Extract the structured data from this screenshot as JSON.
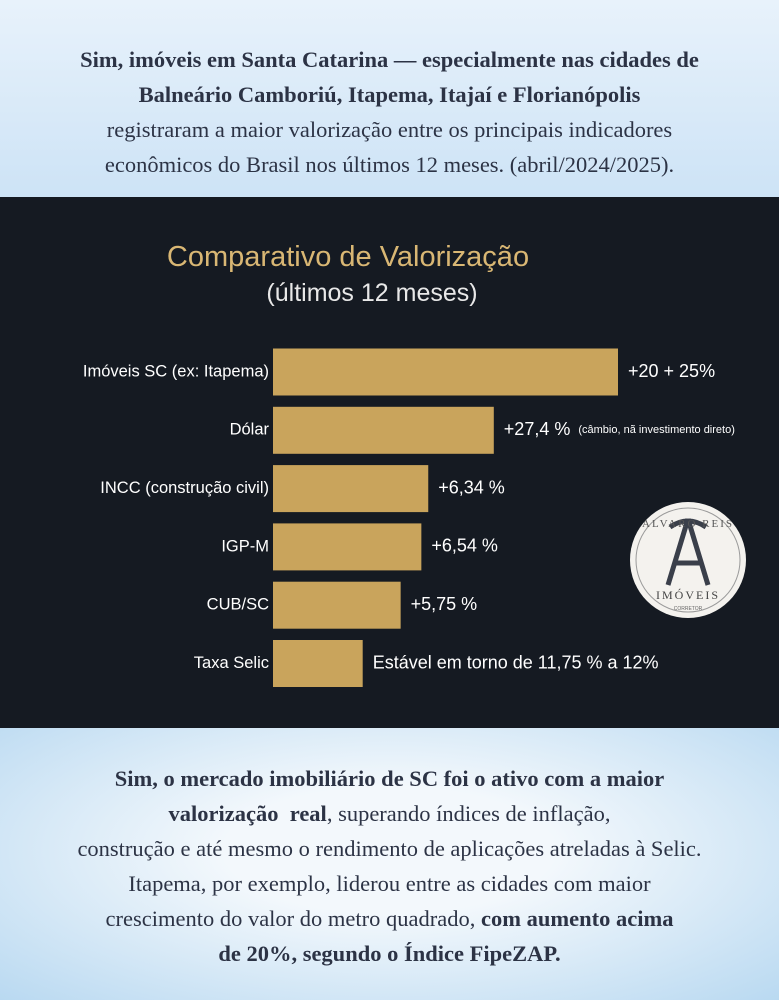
{
  "header": {
    "lines": [
      [
        {
          "text": "Sim, imóveis em Santa Catarina — especialmente nas cidades de",
          "bold": true
        }
      ],
      [
        {
          "text": "Balneário Camboriú, Itapema, Itajaí e Florianópolis",
          "bold": true
        }
      ],
      [
        {
          "text": "registraram a maior valorização entre os principais indicadores",
          "bold": false
        }
      ],
      [
        {
          "text": "econômicos do Brasil nos últimos 12 meses. (abril/2024/2025).",
          "bold": false
        }
      ]
    ]
  },
  "chart_data": {
    "type": "hbar",
    "title": "Comparativo de Valorização",
    "subtitle": "(últimos 12 meses)",
    "categories": [
      "Imóveis SC (ex: Itapema)",
      "Dólar",
      "INCC (construção civil)",
      "IGP-M",
      "CUB/SC",
      "Taxa Selic"
    ],
    "values": [
      100,
      64,
      45,
      43,
      37,
      26
    ],
    "xlim": [
      0,
      100
    ],
    "color": "#c9a45c",
    "annotations": [
      "+20 + 25%",
      "+27,4 %",
      "+6,34 %",
      "+6,54 %",
      "+5,75 %",
      "Estável em torno de 11,75 % a 12%"
    ],
    "notes": [
      null,
      "(câmbio, nã investimento direto)",
      null,
      null,
      null,
      null
    ]
  },
  "logo": {
    "name": "ALVARO REIS",
    "brand": "IMÓVEIS",
    "role": "CORRETOR"
  },
  "footer": {
    "lines": [
      [
        {
          "text": "Sim, o mercado imobiliário de SC foi o ativo com a maior",
          "bold": true
        }
      ],
      [
        {
          "text": "valorização  real",
          "bold": true
        },
        {
          "text": ", superando índices de inflação,",
          "bold": false
        }
      ],
      [
        {
          "text": "construção e até mesmo o rendimento de aplicações atreladas à Selic.",
          "bold": false
        }
      ],
      [
        {
          "text": "Itapema, por exemplo, liderou entre as cidades com maior",
          "bold": false
        }
      ],
      [
        {
          "text": "crescimento do valor do metro quadrado, ",
          "bold": false
        },
        {
          "text": "com aumento acima",
          "bold": true
        }
      ],
      [
        {
          "text": "de 20%, segundo o Índice FipeZAP.",
          "bold": true
        }
      ]
    ]
  }
}
